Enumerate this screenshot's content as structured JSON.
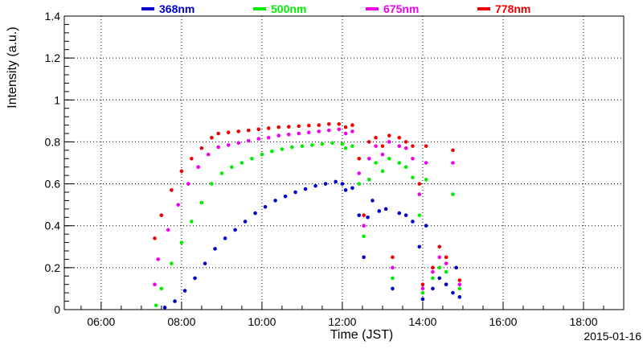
{
  "chart_data": {
    "type": "scatter",
    "xlabel": "Time (JST)",
    "ylabel": "Intensity (a.u.)",
    "date_label": "2015-01-16",
    "xlim": [
      "05:05",
      "19:00"
    ],
    "ylim": [
      0,
      1.4
    ],
    "x_ticks": [
      "06:00",
      "08:00",
      "10:00",
      "12:00",
      "14:00",
      "16:00",
      "18:00"
    ],
    "y_ticks": [
      "0",
      "0.2",
      "0.4",
      "0.6",
      "0.8",
      "1",
      "1.2",
      "1.4"
    ],
    "grid": true,
    "grid_style": "dotted",
    "legend_position": "top",
    "series": [
      {
        "name": "368nm",
        "color": "#0000cc",
        "points": [
          [
            "07:35",
            0.01
          ],
          [
            "07:50",
            0.04
          ],
          [
            "08:05",
            0.09
          ],
          [
            "08:20",
            0.15
          ],
          [
            "08:35",
            0.22
          ],
          [
            "08:50",
            0.29
          ],
          [
            "09:05",
            0.34
          ],
          [
            "09:20",
            0.38
          ],
          [
            "09:35",
            0.42
          ],
          [
            "09:50",
            0.46
          ],
          [
            "10:05",
            0.49
          ],
          [
            "10:20",
            0.52
          ],
          [
            "10:35",
            0.54
          ],
          [
            "10:50",
            0.56
          ],
          [
            "11:05",
            0.575
          ],
          [
            "11:20",
            0.59
          ],
          [
            "11:35",
            0.6
          ],
          [
            "11:50",
            0.61
          ],
          [
            "12:00",
            0.6
          ],
          [
            "12:05",
            0.57
          ],
          [
            "12:15",
            0.58
          ],
          [
            "12:25",
            0.45
          ],
          [
            "12:32",
            0.25
          ],
          [
            "12:38",
            0.44
          ],
          [
            "12:45",
            0.52
          ],
          [
            "12:55",
            0.47
          ],
          [
            "13:05",
            0.48
          ],
          [
            "13:15",
            0.1
          ],
          [
            "13:25",
            0.46
          ],
          [
            "13:35",
            0.45
          ],
          [
            "13:45",
            0.42
          ],
          [
            "13:55",
            0.3
          ],
          [
            "14:00",
            0.05
          ],
          [
            "14:05",
            0.4
          ],
          [
            "14:15",
            0.1
          ],
          [
            "14:25",
            0.15
          ],
          [
            "14:35",
            0.12
          ],
          [
            "14:45",
            0.08
          ],
          [
            "14:50",
            0.2
          ],
          [
            "14:55",
            0.06
          ]
        ]
      },
      {
        "name": "500nm",
        "color": "#00ee00",
        "points": [
          [
            "07:22",
            0.02
          ],
          [
            "07:30",
            0.1
          ],
          [
            "07:45",
            0.22
          ],
          [
            "08:00",
            0.32
          ],
          [
            "08:15",
            0.42
          ],
          [
            "08:30",
            0.51
          ],
          [
            "08:45",
            0.6
          ],
          [
            "09:00",
            0.65
          ],
          [
            "09:15",
            0.68
          ],
          [
            "09:30",
            0.7
          ],
          [
            "09:45",
            0.72
          ],
          [
            "10:00",
            0.74
          ],
          [
            "10:15",
            0.755
          ],
          [
            "10:30",
            0.765
          ],
          [
            "10:45",
            0.775
          ],
          [
            "11:00",
            0.78
          ],
          [
            "11:15",
            0.785
          ],
          [
            "11:30",
            0.79
          ],
          [
            "11:45",
            0.795
          ],
          [
            "12:00",
            0.79
          ],
          [
            "12:05",
            0.77
          ],
          [
            "12:15",
            0.78
          ],
          [
            "12:25",
            0.6
          ],
          [
            "12:32",
            0.35
          ],
          [
            "12:40",
            0.62
          ],
          [
            "12:50",
            0.7
          ],
          [
            "13:00",
            0.66
          ],
          [
            "13:10",
            0.72
          ],
          [
            "13:15",
            0.15
          ],
          [
            "13:25",
            0.7
          ],
          [
            "13:35",
            0.68
          ],
          [
            "13:45",
            0.63
          ],
          [
            "13:55",
            0.45
          ],
          [
            "14:00",
            0.08
          ],
          [
            "14:05",
            0.62
          ],
          [
            "14:15",
            0.15
          ],
          [
            "14:25",
            0.2
          ],
          [
            "14:35",
            0.18
          ],
          [
            "14:45",
            0.55
          ],
          [
            "14:55",
            0.1
          ]
        ]
      },
      {
        "name": "675nm",
        "color": "#ee00ee",
        "points": [
          [
            "07:20",
            0.12
          ],
          [
            "07:25",
            0.24
          ],
          [
            "07:40",
            0.38
          ],
          [
            "07:55",
            0.5
          ],
          [
            "08:10",
            0.6
          ],
          [
            "08:25",
            0.68
          ],
          [
            "08:40",
            0.74
          ],
          [
            "08:55",
            0.775
          ],
          [
            "09:10",
            0.785
          ],
          [
            "09:25",
            0.795
          ],
          [
            "09:40",
            0.805
          ],
          [
            "09:55",
            0.815
          ],
          [
            "10:10",
            0.82
          ],
          [
            "10:25",
            0.83
          ],
          [
            "10:40",
            0.835
          ],
          [
            "10:55",
            0.84
          ],
          [
            "11:10",
            0.845
          ],
          [
            "11:25",
            0.85
          ],
          [
            "11:40",
            0.855
          ],
          [
            "11:55",
            0.86
          ],
          [
            "12:05",
            0.84
          ],
          [
            "12:15",
            0.85
          ],
          [
            "12:25",
            0.65
          ],
          [
            "12:32",
            0.4
          ],
          [
            "12:40",
            0.72
          ],
          [
            "12:50",
            0.78
          ],
          [
            "13:00",
            0.74
          ],
          [
            "13:10",
            0.8
          ],
          [
            "13:15",
            0.2
          ],
          [
            "13:25",
            0.78
          ],
          [
            "13:35",
            0.77
          ],
          [
            "13:45",
            0.72
          ],
          [
            "13:55",
            0.55
          ],
          [
            "14:00",
            0.1
          ],
          [
            "14:05",
            0.7
          ],
          [
            "14:15",
            0.18
          ],
          [
            "14:25",
            0.25
          ],
          [
            "14:35",
            0.22
          ],
          [
            "14:45",
            0.7
          ],
          [
            "14:55",
            0.12
          ]
        ]
      },
      {
        "name": "778nm",
        "color": "#ee0000",
        "points": [
          [
            "07:20",
            0.34
          ],
          [
            "07:30",
            0.45
          ],
          [
            "07:45",
            0.57
          ],
          [
            "08:00",
            0.66
          ],
          [
            "08:15",
            0.72
          ],
          [
            "08:30",
            0.77
          ],
          [
            "08:45",
            0.82
          ],
          [
            "08:55",
            0.84
          ],
          [
            "09:10",
            0.845
          ],
          [
            "09:25",
            0.85
          ],
          [
            "09:40",
            0.855
          ],
          [
            "09:55",
            0.86
          ],
          [
            "10:10",
            0.865
          ],
          [
            "10:25",
            0.87
          ],
          [
            "10:40",
            0.872
          ],
          [
            "10:55",
            0.875
          ],
          [
            "11:10",
            0.878
          ],
          [
            "11:25",
            0.88
          ],
          [
            "11:40",
            0.885
          ],
          [
            "11:55",
            0.885
          ],
          [
            "12:05",
            0.87
          ],
          [
            "12:15",
            0.88
          ],
          [
            "12:25",
            0.72
          ],
          [
            "12:32",
            0.45
          ],
          [
            "12:40",
            0.8
          ],
          [
            "12:50",
            0.82
          ],
          [
            "13:00",
            0.78
          ],
          [
            "13:10",
            0.83
          ],
          [
            "13:15",
            0.25
          ],
          [
            "13:25",
            0.82
          ],
          [
            "13:35",
            0.8
          ],
          [
            "13:45",
            0.78
          ],
          [
            "13:55",
            0.6
          ],
          [
            "14:00",
            0.12
          ],
          [
            "14:05",
            0.78
          ],
          [
            "14:15",
            0.2
          ],
          [
            "14:25",
            0.3
          ],
          [
            "14:35",
            0.25
          ],
          [
            "14:45",
            0.76
          ],
          [
            "14:55",
            0.14
          ]
        ]
      }
    ]
  }
}
